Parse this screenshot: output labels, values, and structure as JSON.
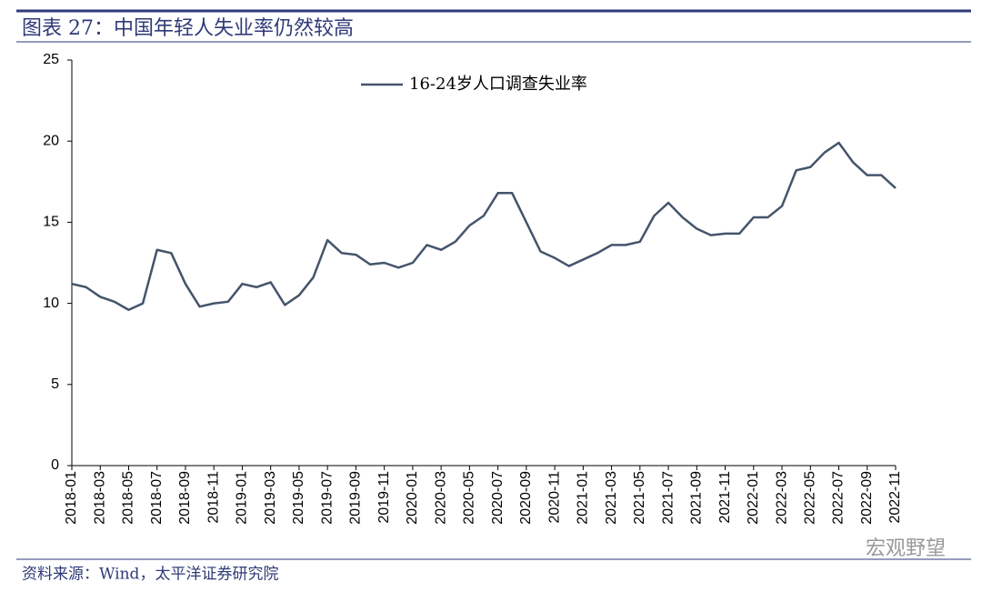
{
  "chart_data": {
    "type": "line",
    "title": "图表 27：中国年轻人失业率仍然较高",
    "source": "资料来源：Wind，太平洋证券研究院",
    "watermark": "宏观野望",
    "categories": [
      "2018-01",
      null,
      "2018-03",
      null,
      "2018-05",
      null,
      "2018-07",
      null,
      "2018-09",
      null,
      "2018-11",
      null,
      "2019-01",
      null,
      "2019-03",
      null,
      "2019-05",
      null,
      "2019-07",
      null,
      "2019-09",
      null,
      "2019-11",
      null,
      "2020-01",
      null,
      "2020-03",
      null,
      "2020-05",
      null,
      "2020-07",
      null,
      "2020-09",
      null,
      "2020-11",
      null,
      "2021-01",
      null,
      "2021-03",
      null,
      "2021-05",
      null,
      "2021-07",
      null,
      "2021-09",
      null,
      "2021-11",
      null,
      "2022-01",
      null,
      "2022-03",
      null,
      "2022-05",
      null,
      "2022-07",
      null,
      "2022-09",
      null,
      "2022-11"
    ],
    "series": [
      {
        "name": "16-24岁人口调查失业率",
        "color": "#44546a",
        "values": [
          11.2,
          11.0,
          10.4,
          10.1,
          9.6,
          10.0,
          13.3,
          13.1,
          11.2,
          9.8,
          10.0,
          10.1,
          11.2,
          11.0,
          11.3,
          9.9,
          10.5,
          11.6,
          13.9,
          13.1,
          13.0,
          12.4,
          12.5,
          12.2,
          12.5,
          13.6,
          13.3,
          13.8,
          14.8,
          15.4,
          16.8,
          16.8,
          15.0,
          13.2,
          12.8,
          12.3,
          12.7,
          13.1,
          13.6,
          13.6,
          13.8,
          15.4,
          16.2,
          15.3,
          14.6,
          14.2,
          14.3,
          14.3,
          15.3,
          15.3,
          16.0,
          18.2,
          18.4,
          19.3,
          19.9,
          18.7,
          17.9,
          17.9,
          17.1
        ]
      }
    ],
    "ylim": [
      0,
      25
    ],
    "yticks": [
      0,
      5,
      10,
      15,
      20,
      25
    ],
    "grid": false,
    "legend": "top"
  }
}
